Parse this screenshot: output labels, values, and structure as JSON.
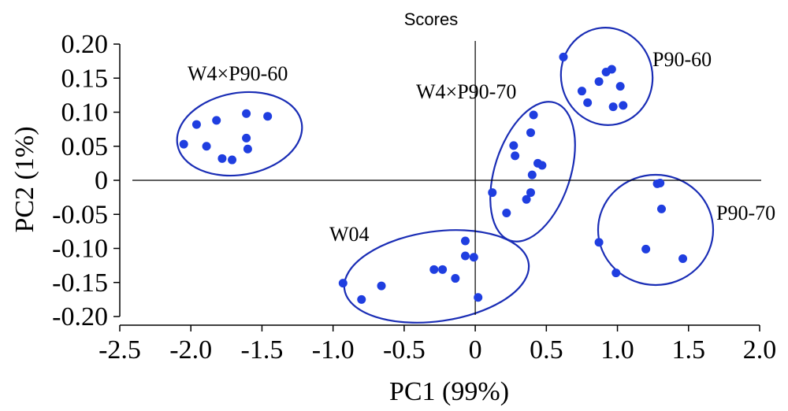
{
  "chart_data": {
    "type": "scatter",
    "title": "Scores",
    "xlabel": "PC1 (99%)",
    "ylabel": "PC2 (1%)",
    "xlim": [
      -2.5,
      2.0
    ],
    "ylim": [
      -0.2,
      0.2
    ],
    "xticks": [
      "-2.5",
      "-2.0",
      "-1.5",
      "-1.0",
      "-0.5",
      "0",
      "0.5",
      "1.0",
      "1.5",
      "2.0"
    ],
    "yticks": [
      "0.20",
      "0.15",
      "0.10",
      "0.05",
      "0",
      "-0.05",
      "-0.10",
      "-0.15",
      "-0.20"
    ],
    "point_color": "#1f3ee0",
    "ellipse_color": "#1a2db5",
    "groups": [
      {
        "label": "W4×P90-60",
        "points": [
          [
            -2.05,
            0.053
          ],
          [
            -1.96,
            0.082
          ],
          [
            -1.89,
            0.05
          ],
          [
            -1.82,
            0.088
          ],
          [
            -1.78,
            0.032
          ],
          [
            -1.71,
            0.03
          ],
          [
            -1.61,
            0.098
          ],
          [
            -1.61,
            0.062
          ],
          [
            -1.6,
            0.046
          ],
          [
            -1.46,
            0.094
          ]
        ]
      },
      {
        "label": "W4×P90-70",
        "points": [
          [
            0.12,
            -0.018
          ],
          [
            0.22,
            -0.048
          ],
          [
            0.27,
            0.051
          ],
          [
            0.28,
            0.036
          ],
          [
            0.36,
            -0.028
          ],
          [
            0.39,
            -0.018
          ],
          [
            0.39,
            0.07
          ],
          [
            0.4,
            0.008
          ],
          [
            0.41,
            0.096
          ],
          [
            0.44,
            0.025
          ],
          [
            0.47,
            0.022
          ]
        ]
      },
      {
        "label": "P90-60",
        "points": [
          [
            0.62,
            0.181
          ],
          [
            0.75,
            0.131
          ],
          [
            0.79,
            0.114
          ],
          [
            0.87,
            0.145
          ],
          [
            0.92,
            0.159
          ],
          [
            0.96,
            0.163
          ],
          [
            0.97,
            0.108
          ],
          [
            1.02,
            0.138
          ],
          [
            1.04,
            0.11
          ]
        ]
      },
      {
        "label": "P90-70",
        "points": [
          [
            0.87,
            -0.091
          ],
          [
            0.99,
            -0.136
          ],
          [
            1.2,
            -0.101
          ],
          [
            1.28,
            -0.005
          ],
          [
            1.3,
            -0.004
          ],
          [
            1.31,
            -0.042
          ],
          [
            1.46,
            -0.115
          ]
        ]
      },
      {
        "label": "W04",
        "points": [
          [
            -0.93,
            -0.151
          ],
          [
            -0.8,
            -0.175
          ],
          [
            -0.66,
            -0.155
          ],
          [
            -0.29,
            -0.131
          ],
          [
            -0.23,
            -0.131
          ],
          [
            -0.14,
            -0.144
          ],
          [
            -0.07,
            -0.089
          ],
          [
            -0.07,
            -0.111
          ],
          [
            -0.01,
            -0.113
          ],
          [
            0.02,
            -0.172
          ]
        ]
      }
    ]
  }
}
